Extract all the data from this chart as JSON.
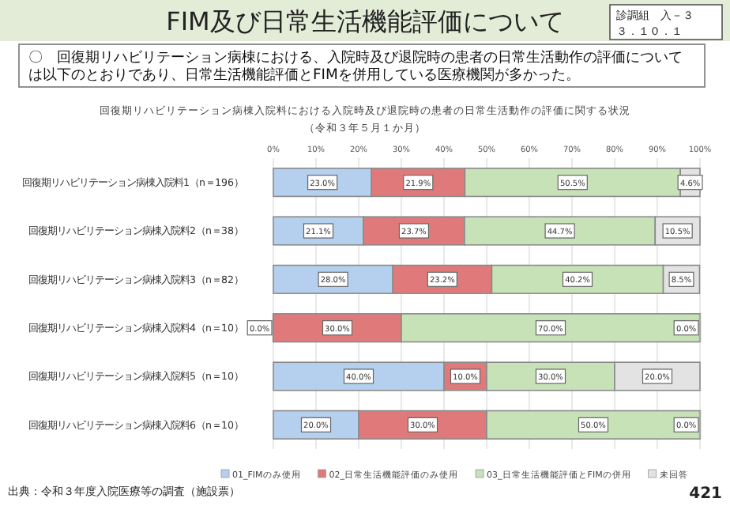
{
  "chart_data": {
    "type": "bar",
    "orientation": "horizontal",
    "stacked": true,
    "title": "FIM及び日常生活機能評価について",
    "subtitle": "回復期リハビリテーション病棟入院料における入院時及び退院時の患者の日常生活動作の評価に関する状況",
    "annotations": [
      "（令和３年５月１か月）",
      "〇　回復期リハビリテーション病棟における、入院時及び退院時の患者の日常生活動作の評価については以下のとおりであり、日常生活機能評価とFIMを併用している医療機関が多かった。",
      "診調組　入－３",
      "３．１０．１",
      "出典：令和３年度入院医療等の調査（施設票）",
      "421"
    ],
    "categories": [
      "回復期リハビリテーション病棟入院料1（n＝196）",
      "回復期リハビリテーション病棟入院料2（n＝38）",
      "回復期リハビリテーション病棟入院料3（n＝82）",
      "回復期リハビリテーション病棟入院料4（n＝10）",
      "回復期リハビリテーション病棟入院料5（n＝10）",
      "回復期リハビリテーション病棟入院料6（n＝10）"
    ],
    "series": [
      {
        "name": "01_FIMのみ使用",
        "color": "#b4d0ee",
        "values": [
          23.0,
          21.1,
          28.0,
          0.0,
          40.0,
          20.0
        ],
        "value_labels": [
          "23.0%",
          "21.1%",
          "28.0%",
          "0.0%",
          "40.0%",
          "20.0%"
        ]
      },
      {
        "name": "02_日常生活機能評価のみ使用",
        "color": "#e07a7a",
        "values": [
          21.9,
          23.7,
          23.2,
          30.0,
          10.0,
          30.0
        ],
        "value_labels": [
          "21.9%",
          "23.7%",
          "23.2%",
          "30.0%",
          "10.0%",
          "30.0%"
        ]
      },
      {
        "name": "03_日常生活機能評価とFIMの併用",
        "color": "#c8e2b8",
        "values": [
          50.5,
          44.7,
          40.2,
          70.0,
          30.0,
          50.0
        ],
        "value_labels": [
          "50.5%",
          "44.7%",
          "40.2%",
          "70.0%",
          "30.0%",
          "50.0%"
        ]
      },
      {
        "name": "未回答",
        "color": "#e3e3e3",
        "values": [
          4.6,
          10.5,
          8.5,
          0.0,
          20.0,
          0.0
        ],
        "value_labels": [
          "4.6%",
          "10.5%",
          "8.5%",
          "0.0%",
          "20.0%",
          "0.0%"
        ]
      }
    ],
    "xlim": [
      0,
      100
    ],
    "xticks": [
      {
        "value": 0,
        "label": "0%"
      },
      {
        "value": 10,
        "label": "10%"
      },
      {
        "value": 20,
        "label": "20%"
      },
      {
        "value": 30,
        "label": "30%"
      },
      {
        "value": 40,
        "label": "40%"
      },
      {
        "value": 50,
        "label": "50%"
      },
      {
        "value": 60,
        "label": "60%"
      },
      {
        "value": 70,
        "label": "70%"
      },
      {
        "value": 80,
        "label": "80%"
      },
      {
        "value": 90,
        "label": "90%"
      },
      {
        "value": 100,
        "label": "100%"
      }
    ],
    "grid": "x",
    "legend": "bottom"
  }
}
